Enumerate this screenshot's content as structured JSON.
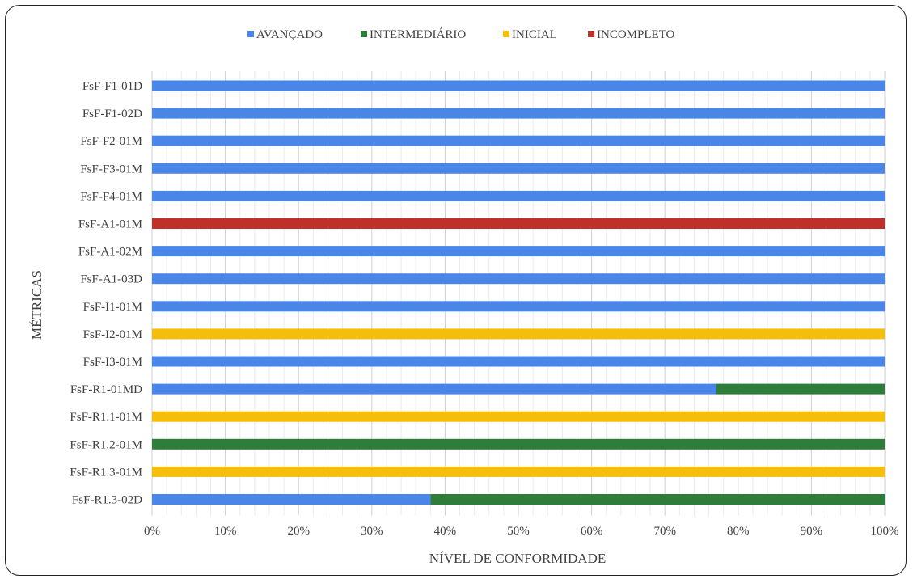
{
  "chart_data": {
    "type": "bar",
    "orientation": "horizontal",
    "stacked": "100%",
    "xlabel": "NÍVEL DE CONFORMIDADE",
    "ylabel": "MÉTRICAS",
    "xlim": [
      0,
      100
    ],
    "x_ticks": [
      "0%",
      "10%",
      "20%",
      "30%",
      "40%",
      "50%",
      "60%",
      "70%",
      "80%",
      "90%",
      "100%"
    ],
    "legend_position": "top",
    "grid": true,
    "categories": [
      "FsF-F1-01D",
      "FsF-F1-02D",
      "FsF-F2-01M",
      "FsF-F3-01M",
      "FsF-F4-01M",
      "FsF-A1-01M",
      "FsF-A1-02M",
      "FsF-A1-03D",
      "FsF-I1-01M",
      "FsF-I2-01M",
      "FsF-I3-01M",
      "FsF-R1-01MD",
      "FsF-R1.1-01M",
      "FsF-R1.2-01M",
      "FsF-R1.3-01M",
      "FsF-R1.3-02D"
    ],
    "series": [
      {
        "name": "AVANÇADO",
        "color": "#4A86E8",
        "values": [
          100,
          100,
          100,
          100,
          100,
          0,
          100,
          100,
          100,
          0,
          100,
          77,
          0,
          0,
          0,
          38
        ]
      },
      {
        "name": "INTERMEDIÁRIO",
        "color": "#2E7D3A",
        "values": [
          0,
          0,
          0,
          0,
          0,
          0,
          0,
          0,
          0,
          0,
          0,
          23,
          0,
          100,
          0,
          62
        ]
      },
      {
        "name": "INICIAL",
        "color": "#F5BE0B",
        "values": [
          0,
          0,
          0,
          0,
          0,
          0,
          0,
          0,
          0,
          100,
          0,
          0,
          100,
          0,
          100,
          0
        ]
      },
      {
        "name": "INCOMPLETO",
        "color": "#C0302B",
        "values": [
          0,
          0,
          0,
          0,
          0,
          100,
          0,
          0,
          0,
          0,
          0,
          0,
          0,
          0,
          0,
          0
        ]
      }
    ]
  }
}
